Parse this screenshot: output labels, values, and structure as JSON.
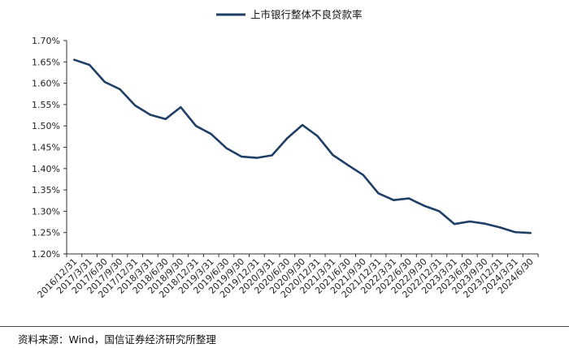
{
  "chart_data": {
    "type": "line",
    "title": "",
    "xlabel": "",
    "ylabel": "",
    "legend": "top-center",
    "grid": false,
    "ylim": [
      1.2,
      1.7
    ],
    "yticks": [
      "1.20%",
      "1.25%",
      "1.30%",
      "1.35%",
      "1.40%",
      "1.45%",
      "1.50%",
      "1.55%",
      "1.60%",
      "1.65%",
      "1.70%"
    ],
    "ytick_values": [
      1.2,
      1.25,
      1.3,
      1.35,
      1.4,
      1.45,
      1.5,
      1.55,
      1.6,
      1.65,
      1.7
    ],
    "categories": [
      "2016/12/31",
      "2017/3/31",
      "2017/6/30",
      "2017/9/30",
      "2017/12/31",
      "2018/3/31",
      "2018/6/30",
      "2018/9/30",
      "2018/12/31",
      "2019/3/31",
      "2019/6/30",
      "2019/9/30",
      "2019/12/31",
      "2020/3/31",
      "2020/6/30",
      "2020/9/30",
      "2020/12/31",
      "2021/3/31",
      "2021/6/30",
      "2021/9/30",
      "2021/12/31",
      "2022/3/31",
      "2022/6/30",
      "2022/9/30",
      "2022/12/31",
      "2023/3/31",
      "2023/6/30",
      "2023/9/30",
      "2023/12/31",
      "2024/3/31",
      "2024/6/30"
    ],
    "series": [
      {
        "name": "上市银行整体不良贷款率",
        "color": "#1f3f66",
        "values": [
          1.655,
          1.643,
          1.603,
          1.586,
          1.548,
          1.526,
          1.516,
          1.544,
          1.5,
          1.481,
          1.448,
          1.428,
          1.425,
          1.431,
          1.471,
          1.502,
          1.476,
          1.432,
          1.408,
          1.385,
          1.342,
          1.326,
          1.33,
          1.313,
          1.3,
          1.27,
          1.276,
          1.271,
          1.262,
          1.251,
          1.249
        ]
      }
    ]
  },
  "source": "资料来源：Wind，国信证券经济研究所整理"
}
